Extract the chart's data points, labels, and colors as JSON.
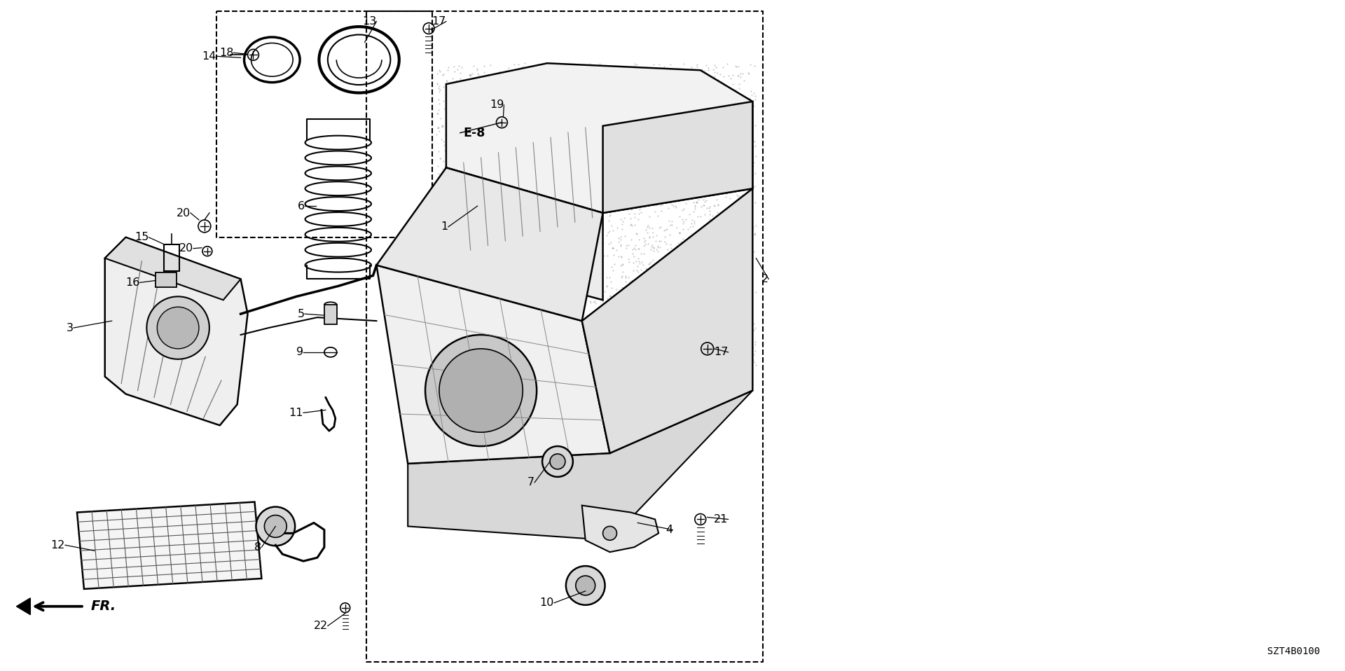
{
  "bg_color": "#ffffff",
  "line_color": "#000000",
  "diagram_code": "SZT4B0100",
  "fig_width": 19.2,
  "fig_height": 9.58,
  "label_fontsize": 11.5,
  "dpi": 100
}
